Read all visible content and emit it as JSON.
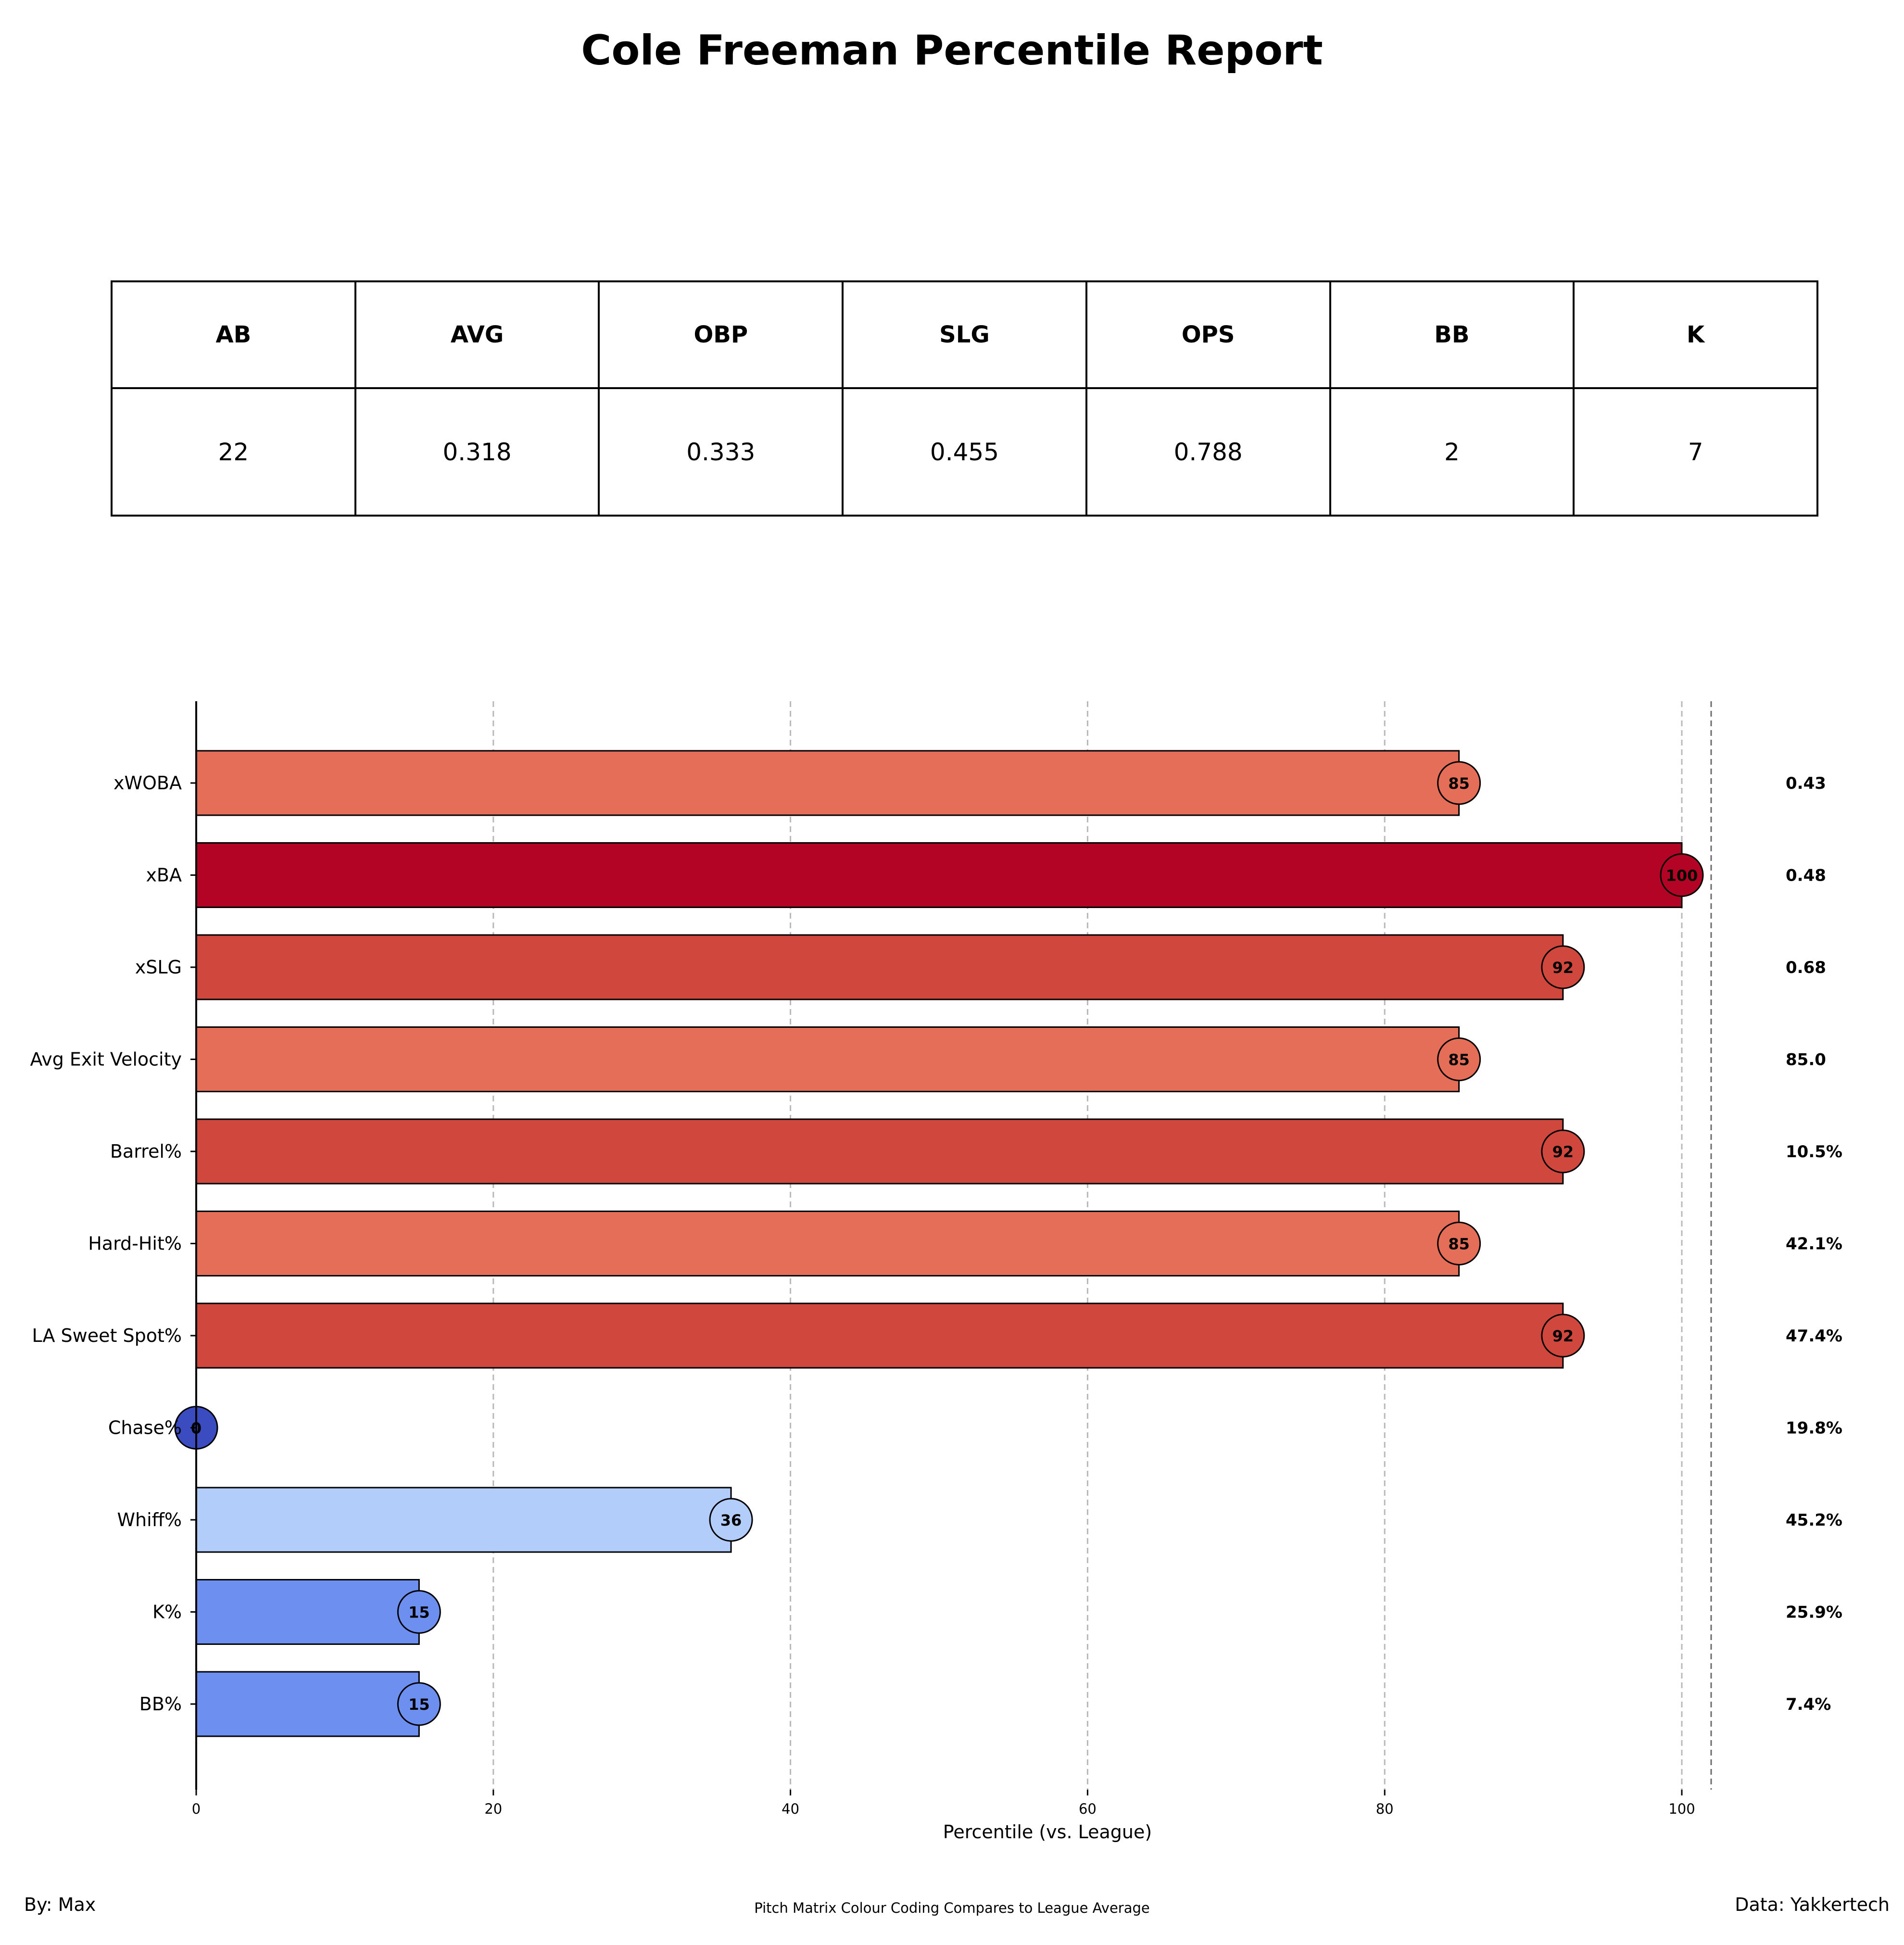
{
  "title": "Cole Freeman Percentile Report",
  "stats_table": {
    "headers": [
      "AB",
      "AVG",
      "OBP",
      "SLG",
      "OPS",
      "BB",
      "K"
    ],
    "values": [
      "22",
      "0.318",
      "0.333",
      "0.455",
      "0.788",
      "2",
      "7"
    ]
  },
  "chart_data": {
    "type": "bar",
    "orientation": "horizontal",
    "categories": [
      "xWOBA",
      "xBA",
      "xSLG",
      "Avg Exit Velocity",
      "Barrel%",
      "Hard-Hit%",
      "LA Sweet Spot%",
      "Chase%",
      "Whiff%",
      "K%",
      "BB%"
    ],
    "values": [
      85,
      100,
      92,
      85,
      92,
      85,
      92,
      0,
      36,
      15,
      15
    ],
    "value_labels": [
      "85",
      "100",
      "92",
      "85",
      "92",
      "85",
      "92",
      "0",
      "36",
      "15",
      "15"
    ],
    "stat_values": [
      "0.43",
      "0.48",
      "0.68",
      "85.0",
      "10.5%",
      "42.1%",
      "47.4%",
      "19.8%",
      "45.2%",
      "25.9%",
      "7.4%"
    ],
    "colors": [
      "#e46e58",
      "#b40426",
      "#d0473d",
      "#e46e58",
      "#d0473d",
      "#e46e58",
      "#d0473d",
      "#3b4cc0",
      "#b3cdfb",
      "#6d8ff0",
      "#6d8ff0"
    ],
    "xlabel": "Percentile (vs. League)",
    "ylabel": "",
    "xlim": [
      0,
      100
    ],
    "xticks": [
      0,
      20,
      40,
      60,
      80,
      100
    ],
    "grid": "vertical dashed"
  },
  "footer": {
    "left": "By: Max",
    "center": "Pitch Matrix Colour Coding Compares to League Average",
    "right": "Data: Yakkertech"
  }
}
